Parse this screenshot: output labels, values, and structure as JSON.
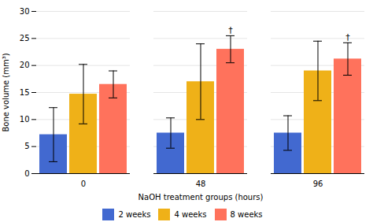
{
  "chart_data": {
    "type": "bar",
    "categories": [
      "0",
      "48",
      "96"
    ],
    "series": [
      {
        "name": "2 weeks",
        "values": [
          7.2,
          7.5,
          7.5
        ],
        "errors": [
          5.0,
          2.8,
          3.2
        ]
      },
      {
        "name": "4 weeks",
        "values": [
          14.7,
          17.0,
          19.0
        ],
        "errors": [
          5.5,
          7.0,
          5.5
        ]
      },
      {
        "name": "8 weeks",
        "values": [
          16.5,
          23.0,
          21.2
        ],
        "errors": [
          2.5,
          2.5,
          3.0
        ]
      }
    ],
    "xlabel": "NaOH treatment groups (hours)",
    "ylabel": "Bone volume (mm³)",
    "ylim": [
      0,
      30
    ],
    "yticks": [
      0,
      5,
      10,
      15,
      20,
      25,
      30
    ],
    "grid": true,
    "legend": "bottom",
    "annotations": [
      {
        "text": "†",
        "category": "48",
        "series": "8 weeks"
      },
      {
        "text": "†",
        "category": "96",
        "series": "8 weeks"
      }
    ]
  }
}
